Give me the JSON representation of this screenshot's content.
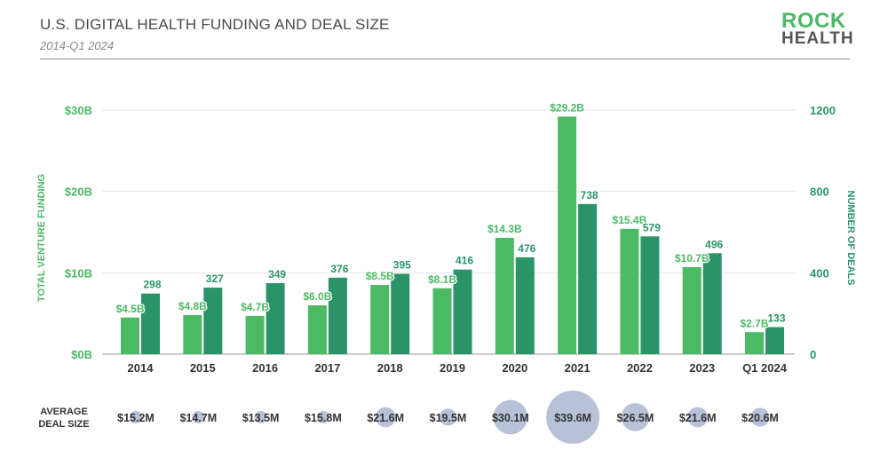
{
  "header": {
    "title": "U.S. DIGITAL HEALTH FUNDING AND DEAL SIZE",
    "subtitle": "2014-Q1 2024",
    "logo_line1": "ROCK",
    "logo_line2": "HEALTH"
  },
  "colors": {
    "funding": "#4cb964",
    "deals": "#2a9468",
    "bubble": "#b7c2d9",
    "grid": "#e6e6e6",
    "axis": "#555555"
  },
  "chart_data": {
    "type": "bar",
    "title": "U.S. DIGITAL HEALTH FUNDING AND DEAL SIZE",
    "subtitle": "2014-Q1 2024",
    "categories": [
      "2014",
      "2015",
      "2016",
      "2017",
      "2018",
      "2019",
      "2020",
      "2021",
      "2022",
      "2023",
      "Q1 2024"
    ],
    "series": [
      {
        "name": "Total Venture Funding ($B)",
        "axis": "left",
        "values": [
          4.5,
          4.8,
          4.7,
          6.0,
          8.5,
          8.1,
          14.3,
          29.2,
          15.4,
          10.7,
          2.7
        ],
        "labels": [
          "$4.5B",
          "$4.8B",
          "$4.7B",
          "$6.0B",
          "$8.5B",
          "$8.1B",
          "$14.3B",
          "$29.2B",
          "$15.4B",
          "$10.7B",
          "$2.7B"
        ]
      },
      {
        "name": "Number of Deals",
        "axis": "right",
        "values": [
          298,
          327,
          349,
          376,
          395,
          416,
          476,
          738,
          579,
          496,
          133
        ],
        "labels": [
          "298",
          "327",
          "349",
          "376",
          "395",
          "416",
          "476",
          "738",
          "579",
          "496",
          "133"
        ]
      }
    ],
    "ylabel_left": "TOTAL VENTURE FUNDING",
    "ylabel_right": "NUMBER OF DEALS",
    "ylim_left": [
      0,
      30
    ],
    "ylim_right": [
      0,
      1200
    ],
    "yticks_left": [
      "$0B",
      "$10B",
      "$20B",
      "$30B"
    ],
    "yticks_right": [
      "0",
      "400",
      "800",
      "1200"
    ],
    "grid": true,
    "avg_deal_size": {
      "label_line1": "AVERAGE",
      "label_line2": "DEAL SIZE",
      "values": [
        15.2,
        14.7,
        13.5,
        15.8,
        21.6,
        19.5,
        30.1,
        39.6,
        26.5,
        21.6,
        20.6
      ],
      "labels": [
        "$15.2M",
        "$14.7M",
        "$13.5M",
        "$15.8M",
        "$21.6M",
        "$19.5M",
        "$30.1M",
        "$39.6M",
        "$26.5M",
        "$21.6M",
        "$20.6M"
      ]
    }
  }
}
